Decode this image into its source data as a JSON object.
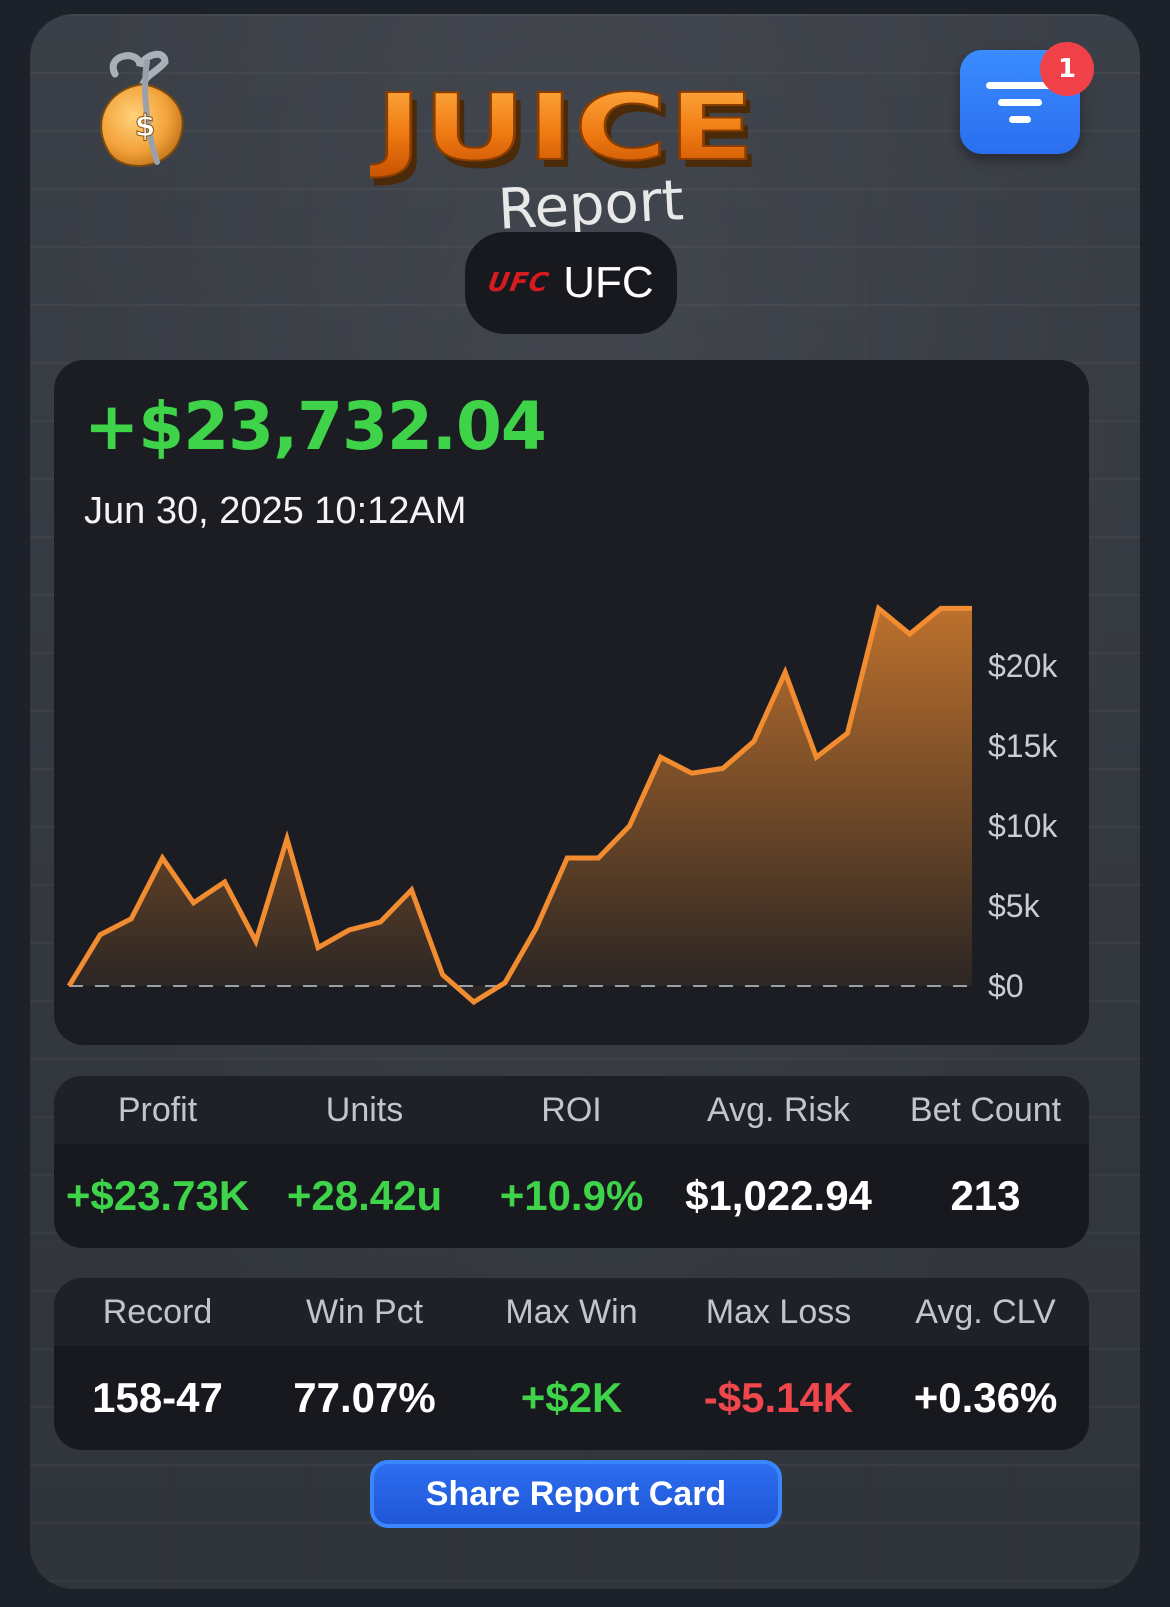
{
  "header": {
    "logo_word_top": "JUICE",
    "logo_word_bottom": "Report",
    "filter_badge_count": "1",
    "app_icon": "money-bag-icon",
    "filter_icon": "filter-icon"
  },
  "sport": {
    "logo_text": "UFC",
    "name": "UFC"
  },
  "summary": {
    "total": "+$23,732.04",
    "timestamp": "Jun 30, 2025 10:12AM"
  },
  "chart_data": {
    "type": "area",
    "title": "",
    "xlabel": "",
    "ylabel": "",
    "y_ticks": [
      "$20k",
      "$15k",
      "$10k",
      "$5k",
      "$0"
    ],
    "y_tick_values": [
      20000,
      15000,
      10000,
      5000,
      0
    ],
    "ylim": [
      -1000,
      24500
    ],
    "baseline": 0,
    "values": [
      0,
      3200,
      4200,
      8000,
      5200,
      6500,
      2800,
      9200,
      2400,
      3500,
      4000,
      6000,
      700,
      -1000,
      200,
      3600,
      8000,
      8000,
      10000,
      14300,
      13300,
      13600,
      15300,
      19600,
      14300,
      15800,
      23600,
      22000,
      23600,
      23600
    ],
    "line_color": "#f28c30",
    "fill_color": "#f28c30"
  },
  "stats_row1": {
    "headers": [
      "Profit",
      "Units",
      "ROI",
      "Avg. Risk",
      "Bet Count"
    ],
    "values": [
      "+$23.73K",
      "+28.42u",
      "+10.9%",
      "$1,022.94",
      "213"
    ]
  },
  "stats_row2": {
    "headers": [
      "Record",
      "Win Pct",
      "Max Win",
      "Max Loss",
      "Avg. CLV"
    ],
    "values": [
      "158-47",
      "77.07%",
      "+$2K",
      "-$5.14K",
      "+0.36%"
    ]
  },
  "share_button": "Share Report Card",
  "colors": {
    "positive": "#3fd34a",
    "negative": "#f0474c",
    "accent": "#2a6ff0",
    "chart": "#f28c30"
  }
}
